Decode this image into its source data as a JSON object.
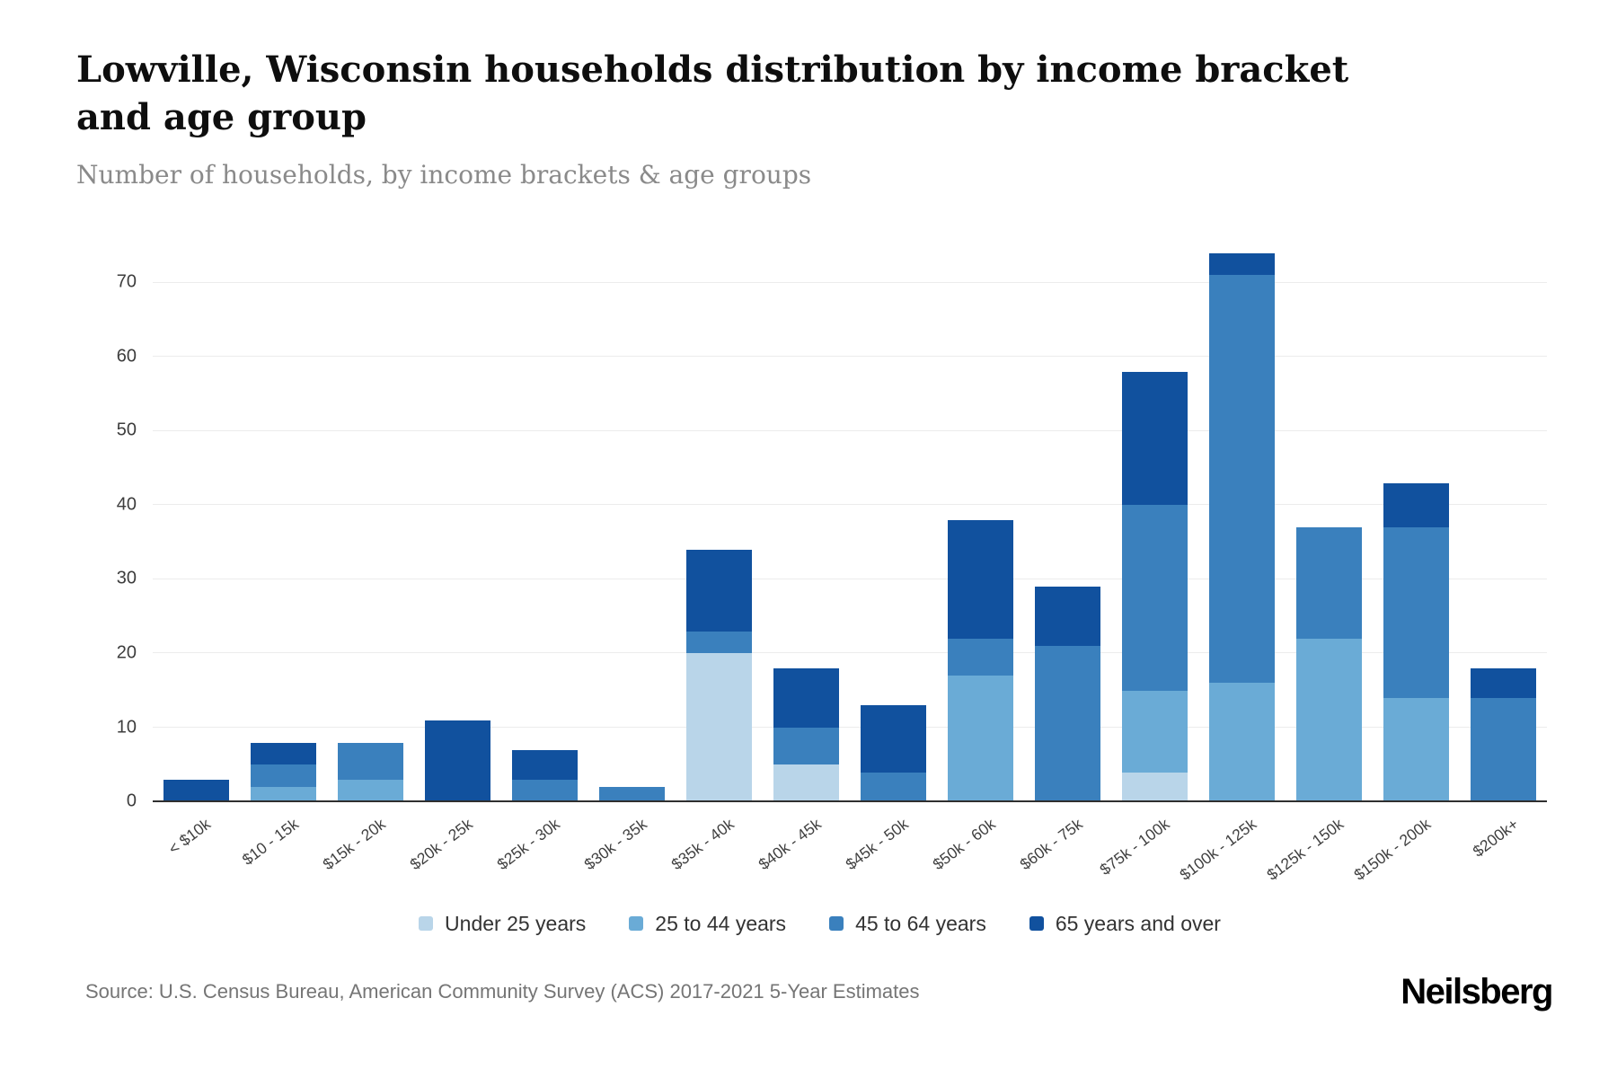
{
  "header": {
    "title": "Lowville, Wisconsin households distribution by income bracket and age group",
    "subtitle": "Number of households, by income brackets & age groups"
  },
  "footer": {
    "source": "Source: U.S. Census Bureau, American Community Survey (ACS) 2017-2021 5-Year Estimates",
    "brand": "Neilsberg"
  },
  "chart_data": {
    "type": "bar",
    "stacked": true,
    "title": "Lowville, Wisconsin households distribution by income bracket and age group",
    "subtitle": "Number of households, by income brackets & age groups",
    "xlabel": "",
    "ylabel": "",
    "grid": true,
    "legend_position": "bottom",
    "ylim": [
      0,
      77.5
    ],
    "yticks": [
      0,
      10,
      20,
      30,
      40,
      50,
      60,
      70
    ],
    "categories": [
      "< $10k",
      "$10 - 15k",
      "$15k - 20k",
      "$20k - 25k",
      "$25k - 30k",
      "$30k - 35k",
      "$35k - 40k",
      "$40k - 45k",
      "$45k - 50k",
      "$50k - 60k",
      "$60k - 75k",
      "$75k - 100k",
      "$100k - 125k",
      "$125k - 150k",
      "$150k - 200k",
      "$200k+"
    ],
    "series": [
      {
        "name": "Under 25 years",
        "color": "#b9d5e9",
        "values": [
          0,
          0,
          0,
          0,
          0,
          0,
          20,
          5,
          0,
          0,
          0,
          4,
          0,
          0,
          0,
          0
        ]
      },
      {
        "name": "25 to 44 years",
        "color": "#6aabd6",
        "values": [
          0,
          2,
          3,
          0,
          0,
          0,
          0,
          0,
          0,
          17,
          0,
          11,
          16,
          22,
          14,
          0
        ]
      },
      {
        "name": "45 to 64 years",
        "color": "#3a80bd",
        "values": [
          0,
          3,
          5,
          0,
          3,
          2,
          3,
          5,
          4,
          5,
          21,
          25,
          55,
          15,
          23,
          14
        ]
      },
      {
        "name": "65 years and over",
        "color": "#11519e",
        "values": [
          3,
          3,
          0,
          11,
          4,
          0,
          11,
          8,
          9,
          16,
          8,
          18,
          3,
          0,
          6,
          4
        ]
      }
    ],
    "totals": [
      3,
      8,
      8,
      11,
      7,
      2,
      34,
      18,
      13,
      38,
      29,
      58,
      74,
      37,
      43,
      18
    ]
  }
}
